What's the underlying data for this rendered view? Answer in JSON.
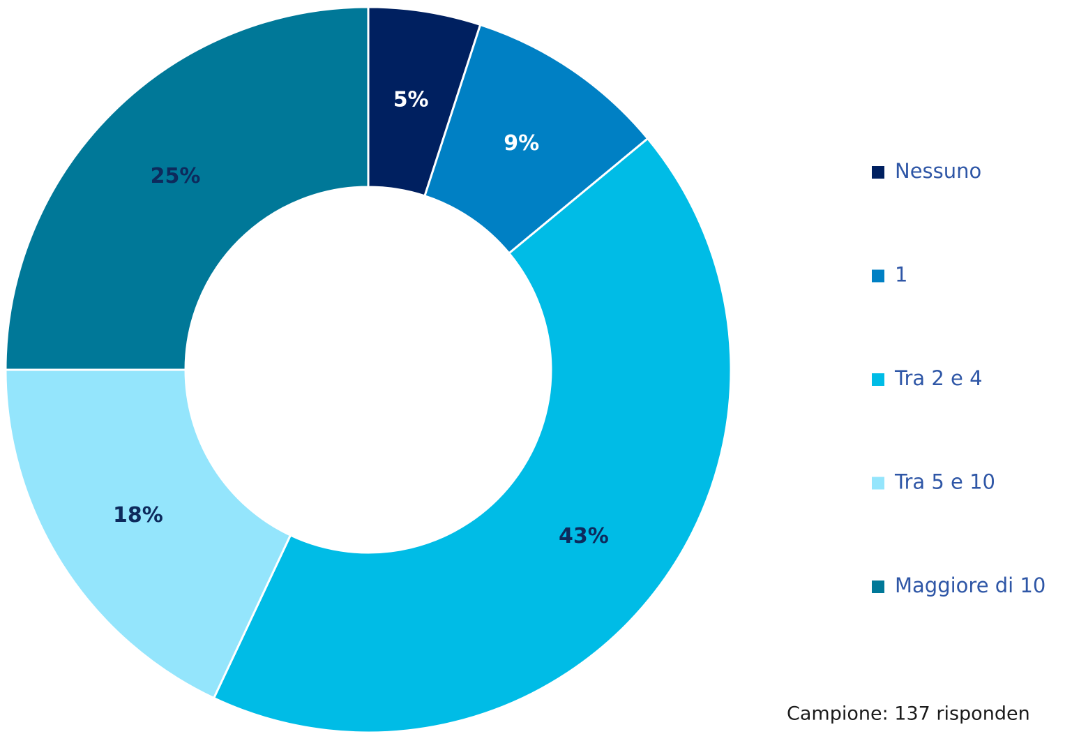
{
  "chart_data": {
    "type": "donut",
    "categories": [
      "Nessuno",
      "1",
      "Tra 2 e 4",
      "Tra 5 e 10",
      "Maggiore di 10"
    ],
    "values": [
      5,
      9,
      43,
      18,
      25
    ],
    "value_labels": [
      "5%",
      "9%",
      "43%",
      "18%",
      "25%"
    ],
    "colors": [
      "#002060",
      "#0080c4",
      "#00bce6",
      "#94e5fc",
      "#007898"
    ],
    "label_colors": [
      "#ffffff",
      "#ffffff",
      "#0d2a5c",
      "#0d2a5c",
      "#0d2a5c"
    ],
    "legend": "right",
    "note": "Campione: 137 risponden"
  }
}
